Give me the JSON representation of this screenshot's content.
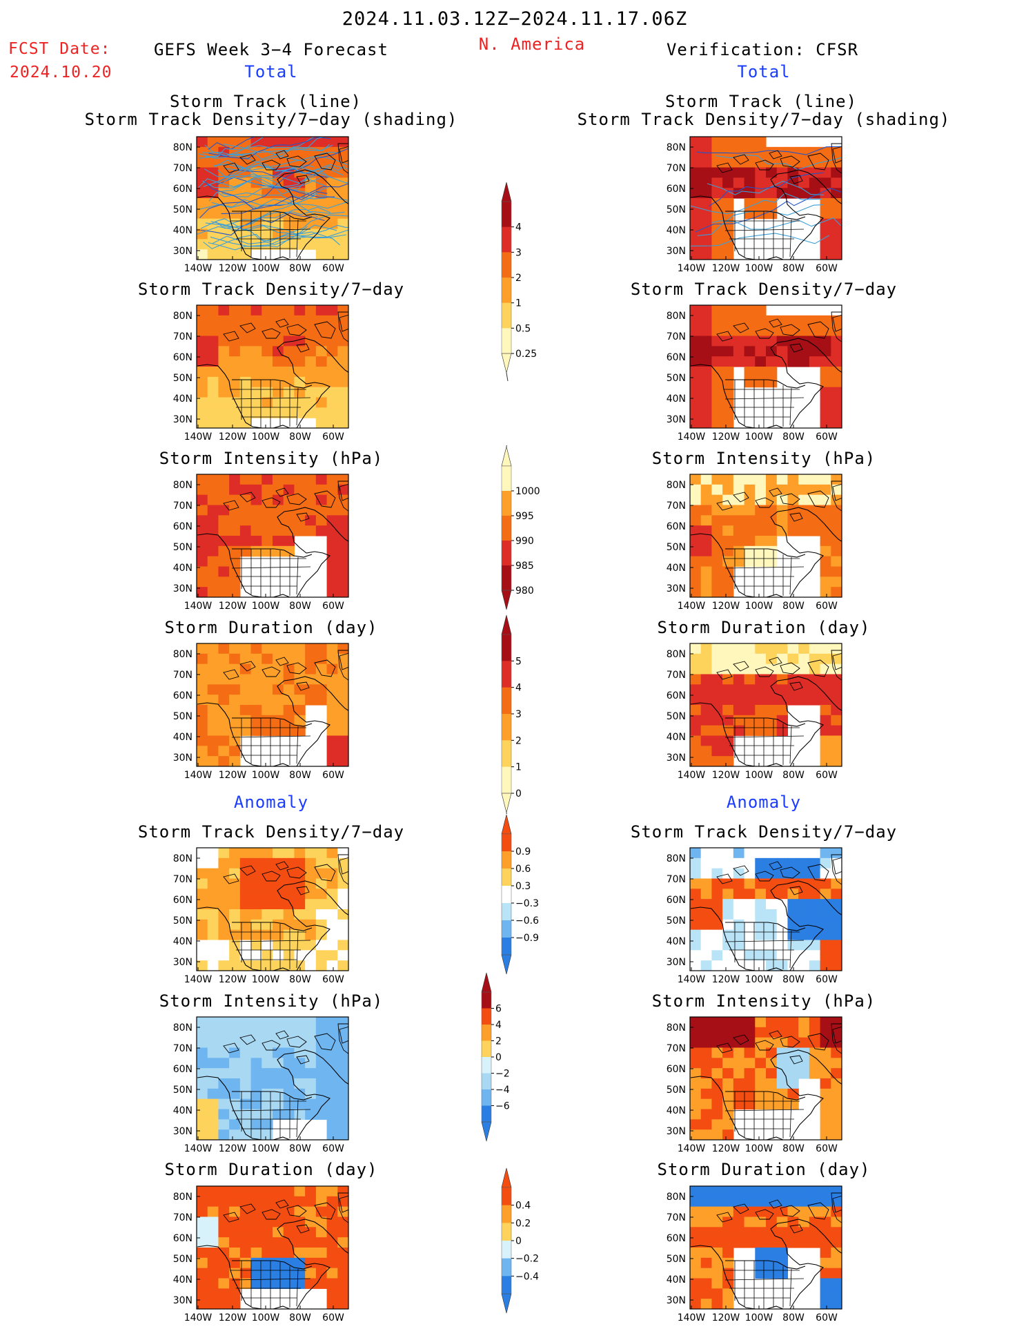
{
  "header": {
    "date_range": "2024.11.03.12Z−2024.11.17.06Z",
    "fcst_label": "FCST Date:",
    "fcst_date": "2024.10.20",
    "model_title": "GEFS Week 3−4 Forecast",
    "region": "N. America",
    "verification_title": "Verification: CFSR",
    "total_label": "Total",
    "anomaly_label": "Anomaly"
  },
  "panel_titles": {
    "track_line": "Storm Track (line)",
    "track_shading": "Storm Track Density/7−day (shading)",
    "density": "Storm Track Density/7−day",
    "intensity": "Storm Intensity (hPa)",
    "duration": "Storm Duration (day)"
  },
  "axes": {
    "lat_labels": [
      "80N",
      "70N",
      "60N",
      "50N",
      "40N",
      "30N"
    ],
    "lon_labels": [
      "140W",
      "120W",
      "100W",
      "80W",
      "60W"
    ]
  },
  "colorbars": {
    "density_total": {
      "ticks": [
        "4",
        "3",
        "2",
        "1",
        "0.5",
        "0.25"
      ],
      "colors": [
        "#a50f15",
        "#de2d26",
        "#f46d14",
        "#fe9f29",
        "#fed35c",
        "#fff7bc"
      ]
    },
    "intensity_total": {
      "ticks": [
        "1000",
        "995",
        "990",
        "985",
        "980"
      ],
      "colors": [
        "#fff7bc",
        "#fe9f29",
        "#f46d14",
        "#de2d26",
        "#a50f15"
      ]
    },
    "duration_total": {
      "ticks": [
        "5",
        "4",
        "3",
        "2",
        "1",
        "0"
      ],
      "colors": [
        "#a50f15",
        "#de2d26",
        "#f46d14",
        "#fe9f29",
        "#fed35c",
        "#fff7bc"
      ]
    },
    "density_anom": {
      "ticks": [
        "0.9",
        "0.6",
        "0.3",
        "−0.3",
        "−0.6",
        "−0.9"
      ],
      "colors": [
        "#f44d12",
        "#fe9f29",
        "#fed35c",
        "#ffffff",
        "#b9e4f7",
        "#6fb5f0",
        "#2b7fe3"
      ]
    },
    "intensity_anom": {
      "ticks": [
        "6",
        "4",
        "2",
        "0",
        "−2",
        "−4",
        "−6"
      ],
      "colors": [
        "#a50f15",
        "#f44d12",
        "#fe9f29",
        "#fed35c",
        "#d8f2fb",
        "#a9d8f3",
        "#6fb5f0",
        "#2b7fe3"
      ]
    },
    "duration_anom": {
      "ticks": [
        "0.4",
        "0.2",
        "0",
        "−0.2",
        "−0.4"
      ],
      "colors": [
        "#f44d12",
        "#fe9f29",
        "#fed35c",
        "#d8f2fb",
        "#6fb5f0",
        "#2b7fe3"
      ]
    }
  },
  "colors": {
    "header_red": "#ee2222",
    "header_blue": "#1a3cff",
    "storm_track_line": "#3a9fd8",
    "storm_track_line_dark": "#2255cc"
  }
}
